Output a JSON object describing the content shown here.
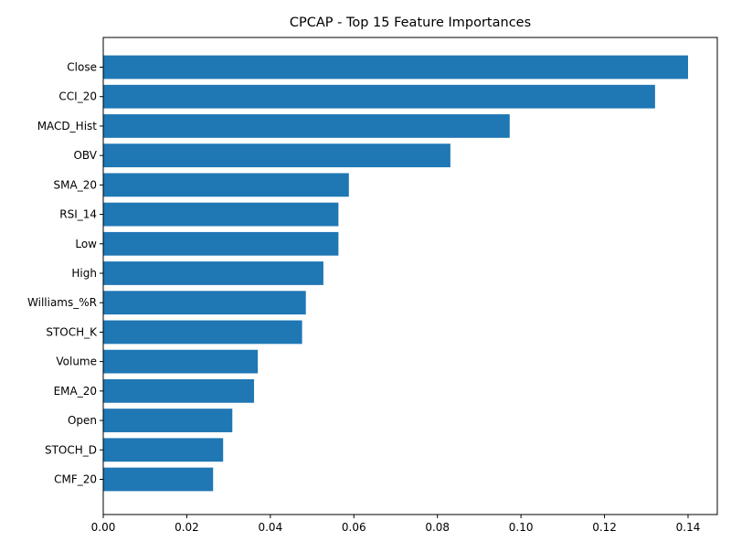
{
  "chart_data": {
    "type": "bar",
    "orientation": "horizontal",
    "title": "CPCAP - Top 15 Feature Importances",
    "xlabel": "",
    "ylabel": "",
    "categories": [
      "Close",
      "CCI_20",
      "MACD_Hist",
      "OBV",
      "SMA_20",
      "RSI_14",
      "Low",
      "High",
      "Williams_%R",
      "STOCH_K",
      "Volume",
      "EMA_20",
      "Open",
      "STOCH_D",
      "CMF_20"
    ],
    "values": [
      0.14,
      0.1321,
      0.0973,
      0.0831,
      0.0588,
      0.0563,
      0.0563,
      0.0527,
      0.0485,
      0.0476,
      0.037,
      0.0361,
      0.0309,
      0.0287,
      0.0263
    ],
    "xlim": [
      0,
      0.147
    ],
    "xticks": [
      0.0,
      0.02,
      0.04,
      0.06,
      0.08,
      0.1,
      0.12,
      0.14
    ],
    "xtick_labels": [
      "0.00",
      "0.02",
      "0.04",
      "0.06",
      "0.08",
      "0.10",
      "0.12",
      "0.14"
    ],
    "grid": false,
    "legend": "none",
    "bar_color": "#1f77b4"
  }
}
